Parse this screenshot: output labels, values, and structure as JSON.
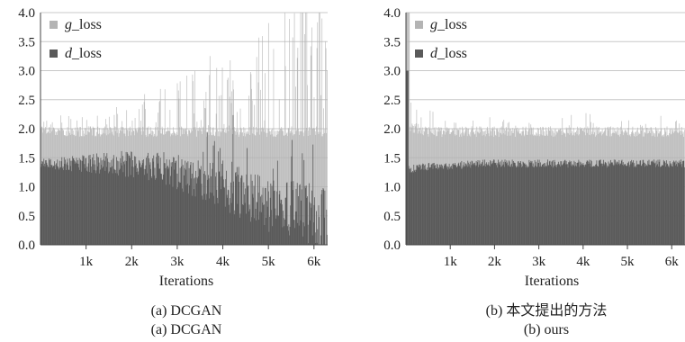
{
  "chart_data": [
    {
      "type": "area",
      "xlabel": "Iterations",
      "ylabel": "",
      "ylim": [
        0,
        4.0
      ],
      "xlim": [
        0,
        6300
      ],
      "yticks": [
        "0.0",
        "0.5",
        "1.0",
        "1.5",
        "2.0",
        "2.5",
        "3.0",
        "3.5",
        "4.0"
      ],
      "xticks": [
        "1k",
        "2k",
        "3k",
        "4k",
        "5k",
        "6k"
      ],
      "grid": true,
      "legend_position": "top-left",
      "captions": [
        "(a) DCGAN",
        "(a) DCGAN"
      ],
      "x": [
        0,
        500,
        1000,
        1500,
        2000,
        2500,
        3000,
        3500,
        4000,
        4500,
        5000,
        5500,
        6000,
        6300
      ],
      "series": [
        {
          "name": "g_loss",
          "color": "#b4b4b4",
          "values": [
            2.0,
            1.95,
            1.95,
            1.95,
            1.95,
            1.95,
            1.95,
            1.95,
            1.95,
            1.95,
            1.95,
            1.95,
            1.95,
            1.95
          ]
        },
        {
          "name": "d_loss",
          "color": "#5a5a5a",
          "values": [
            1.4,
            1.4,
            1.4,
            1.4,
            1.4,
            1.35,
            1.25,
            1.15,
            1.0,
            0.85,
            0.7,
            0.6,
            0.5,
            0.4
          ]
        }
      ]
    },
    {
      "type": "area",
      "xlabel": "Iterations",
      "ylabel": "",
      "ylim": [
        0,
        4.0
      ],
      "xlim": [
        0,
        6300
      ],
      "yticks": [
        "0.0",
        "0.5",
        "1.0",
        "1.5",
        "2.0",
        "2.5",
        "3.0",
        "3.5",
        "4.0"
      ],
      "xticks": [
        "1k",
        "2k",
        "3k",
        "4k",
        "5k",
        "6k"
      ],
      "grid": true,
      "legend_position": "top-left",
      "captions": [
        "(b) 本文提出的方法",
        "(b) ours"
      ],
      "x": [
        0,
        500,
        1000,
        1500,
        2000,
        2500,
        3000,
        3500,
        4000,
        4500,
        5000,
        5500,
        6000,
        6300
      ],
      "series": [
        {
          "name": "g_loss",
          "color": "#b4b4b4",
          "values": [
            2.05,
            1.95,
            1.95,
            1.95,
            1.95,
            1.95,
            1.95,
            1.95,
            1.95,
            1.95,
            1.95,
            1.95,
            1.95,
            1.95
          ]
        },
        {
          "name": "d_loss",
          "color": "#5a5a5a",
          "values": [
            1.3,
            1.35,
            1.35,
            1.4,
            1.4,
            1.4,
            1.4,
            1.4,
            1.4,
            1.4,
            1.4,
            1.4,
            1.4,
            1.4
          ]
        }
      ]
    }
  ]
}
